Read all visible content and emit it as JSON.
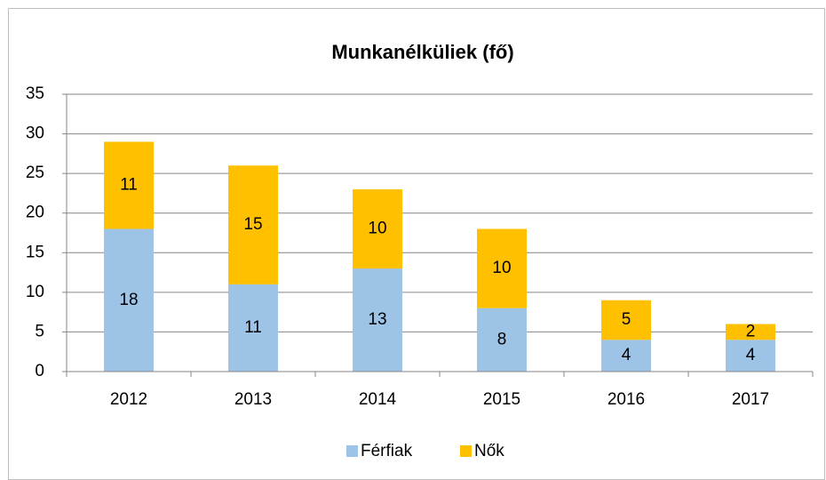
{
  "chart_data": {
    "type": "stacked_bar",
    "title": "Munkanélküliek (fő)",
    "categories": [
      "2012",
      "2013",
      "2014",
      "2015",
      "2016",
      "2017"
    ],
    "series": [
      {
        "name": "Férfiak",
        "color": "#9dc3e6",
        "values": [
          18,
          11,
          13,
          8,
          4,
          4
        ]
      },
      {
        "name": "Nők",
        "color": "#ffc000",
        "values": [
          11,
          15,
          10,
          10,
          5,
          2
        ]
      }
    ],
    "ylim": [
      0,
      35
    ],
    "yticks": [
      0,
      5,
      10,
      15,
      20,
      25,
      30,
      35
    ],
    "grid": true,
    "legend": "bottom"
  }
}
